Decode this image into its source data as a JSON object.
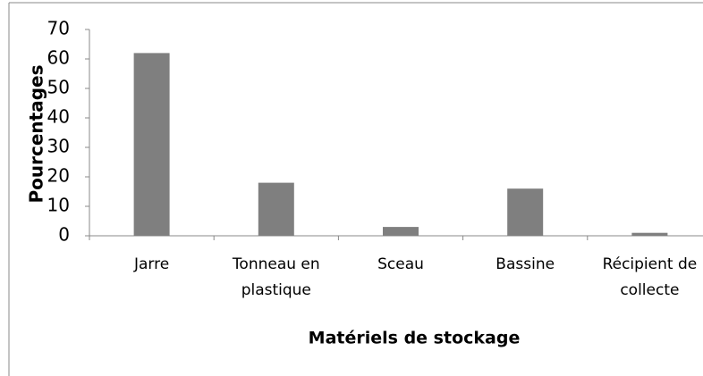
{
  "chart_data": {
    "type": "bar",
    "categories": [
      "Jarre",
      "Tonneau en plastique",
      "Sceau",
      "Bassine",
      "Récipient de collecte"
    ],
    "values": [
      62,
      18,
      3,
      16,
      1
    ],
    "color": "#7f7f7f",
    "ylim": [
      0,
      70
    ],
    "yticks": [
      0,
      10,
      20,
      30,
      40,
      50,
      60,
      70
    ],
    "x_label": "Matériels de stockage",
    "y_label": "Pourcentages"
  }
}
